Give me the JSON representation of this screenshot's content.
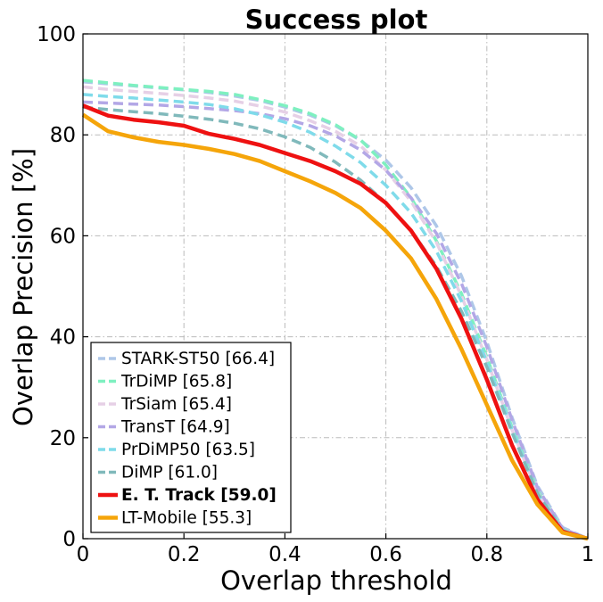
{
  "chart_data": {
    "type": "line",
    "title": "Success plot",
    "xlabel": "Overlap threshold",
    "ylabel": "Overlap Precision [%]",
    "xlim": [
      0,
      1
    ],
    "ylim": [
      0,
      100
    ],
    "xticks": [
      0,
      0.2,
      0.4,
      0.6,
      0.8,
      1
    ],
    "xtick_labels": [
      "0",
      "0.2",
      "0.4",
      "0.6",
      "0.8",
      "1"
    ],
    "yticks": [
      0,
      20,
      40,
      60,
      80,
      100
    ],
    "ytick_labels": [
      "0",
      "20",
      "40",
      "60",
      "80",
      "100"
    ],
    "grid": true,
    "legend_position": "lower-left",
    "x": [
      0,
      0.05,
      0.1,
      0.15,
      0.2,
      0.25,
      0.3,
      0.35,
      0.4,
      0.45,
      0.5,
      0.55,
      0.6,
      0.65,
      0.7,
      0.75,
      0.8,
      0.85,
      0.9,
      0.95,
      1.0
    ],
    "series": [
      {
        "name": "STARK-ST50 [66.4]",
        "color": "#aec7e8",
        "dashed": true,
        "bold": false,
        "values": [
          90.5,
          90.1,
          89.7,
          89.3,
          88.9,
          88.4,
          87.7,
          86.8,
          85.5,
          83.9,
          81.8,
          78.9,
          75.0,
          69.5,
          62.0,
          52.0,
          39.0,
          24.0,
          10.5,
          2.2,
          0
        ]
      },
      {
        "name": "TrDiMP [65.8]",
        "color": "#7ef0c0",
        "dashed": true,
        "bold": false,
        "values": [
          90.8,
          90.3,
          89.8,
          89.4,
          89.0,
          88.6,
          88.0,
          87.0,
          85.8,
          84.2,
          82.0,
          79.0,
          74.0,
          67.5,
          59.0,
          48.5,
          36.0,
          22.0,
          9.5,
          1.8,
          0
        ]
      },
      {
        "name": "TrSiam [65.4]",
        "color": "#e6d0e6",
        "dashed": true,
        "bold": false,
        "values": [
          89.5,
          89.0,
          88.6,
          88.2,
          87.8,
          87.3,
          86.7,
          85.7,
          84.5,
          82.8,
          80.7,
          77.8,
          73.0,
          66.8,
          58.7,
          48.0,
          35.5,
          21.5,
          9.2,
          1.7,
          0
        ]
      },
      {
        "name": "TransT [64.9]",
        "color": "#b3a7e6",
        "dashed": true,
        "bold": false,
        "values": [
          86.5,
          86.3,
          86.1,
          85.9,
          85.6,
          85.2,
          84.8,
          84.2,
          83.2,
          81.8,
          79.8,
          77.0,
          73.0,
          67.5,
          60.5,
          50.5,
          38.0,
          23.5,
          10.2,
          2.0,
          0
        ]
      },
      {
        "name": "PrDiMP50 [63.5]",
        "color": "#7fdbea",
        "dashed": true,
        "bold": false,
        "values": [
          88.0,
          87.6,
          87.3,
          86.9,
          86.5,
          86.0,
          85.2,
          84.0,
          82.5,
          80.5,
          77.8,
          74.5,
          70.0,
          64.5,
          57.0,
          47.0,
          35.0,
          21.5,
          9.0,
          1.6,
          0
        ]
      },
      {
        "name": "DiMP [61.0]",
        "color": "#80b9bb",
        "dashed": true,
        "bold": false,
        "values": [
          85.5,
          85.0,
          84.6,
          84.2,
          83.7,
          83.1,
          82.3,
          81.2,
          79.6,
          77.5,
          74.6,
          71.0,
          66.5,
          61.0,
          54.0,
          45.0,
          34.0,
          21.0,
          9.0,
          1.6,
          0
        ]
      },
      {
        "name": "E. T. Track [59.0]",
        "color": "#ee1111",
        "dashed": false,
        "bold": true,
        "values": [
          85.8,
          83.8,
          83.0,
          82.5,
          81.8,
          80.2,
          79.2,
          78.0,
          76.4,
          74.8,
          72.8,
          70.3,
          66.5,
          61.0,
          53.5,
          43.5,
          31.5,
          18.5,
          7.8,
          1.4,
          0
        ]
      },
      {
        "name": "LT-Mobile [55.3]",
        "color": "#f5a50a",
        "dashed": false,
        "bold": false,
        "values": [
          84.0,
          80.7,
          79.5,
          78.6,
          78.0,
          77.2,
          76.2,
          74.8,
          72.8,
          70.8,
          68.5,
          65.5,
          61.0,
          55.5,
          47.5,
          37.5,
          26.5,
          15.5,
          6.8,
          1.2,
          0
        ]
      }
    ]
  }
}
